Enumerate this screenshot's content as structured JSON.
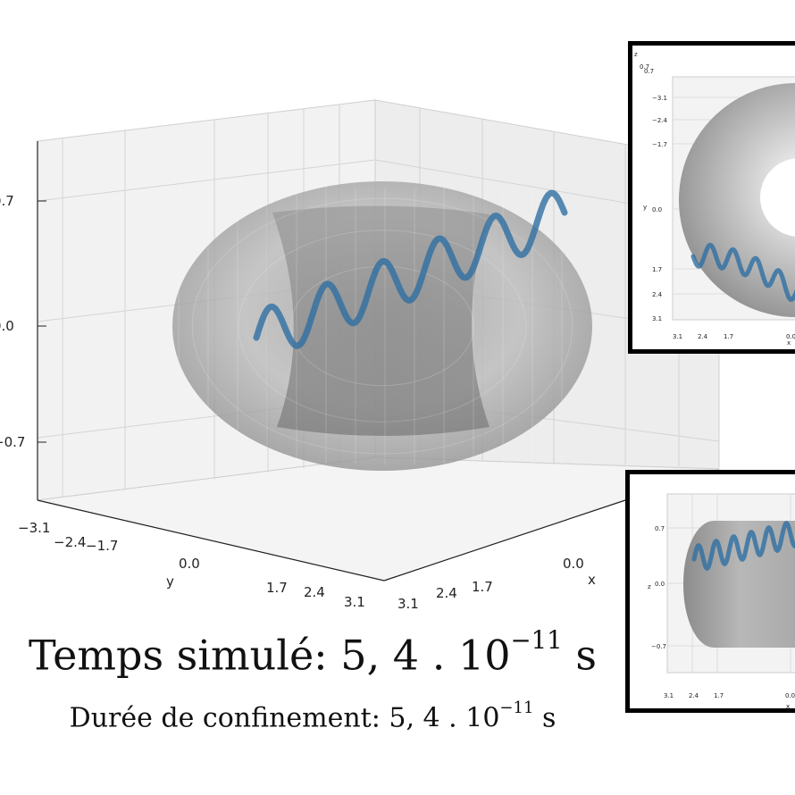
{
  "caption": {
    "simulated_label": "Temps simulé: ",
    "simulated_mantissa": "5, 4 . 10",
    "simulated_exponent": "−11",
    "simulated_unit": " s",
    "confinement_label": "Durée de confinement: ",
    "confinement_mantissa": "5, 4 . 10",
    "confinement_exponent": "−11",
    "confinement_unit": " s"
  },
  "chart_data": [
    {
      "type": "scatter",
      "view": "3d-perspective",
      "z_ticks": [
        "0.7",
        "0.0",
        "−0.7"
      ],
      "y_ticks": [
        "−3.1",
        "−2.4",
        "−1.7",
        "0.0",
        "1.7",
        "2.4",
        "3.1"
      ],
      "x_ticks": [
        "3.1",
        "2.4",
        "1.7",
        "0.0"
      ],
      "ylabel": "y",
      "xlabel": "x",
      "zlim": [
        -0.7,
        0.7
      ],
      "surface": "torus",
      "trajectory_color": "#2f6fa3",
      "grid": true
    },
    {
      "type": "scatter",
      "view": "top (x-y)",
      "zlabel": "z",
      "ylabel": "y",
      "xlabel": "x",
      "y_ticks": [
        "−3.1",
        "−2.4",
        "−1.7",
        "0.0",
        "1.7",
        "2.4",
        "3.1"
      ],
      "x_ticks": [
        "3.1",
        "2.4",
        "1.7",
        "0.0"
      ],
      "z_ticks": [
        "0.7",
        "0.7"
      ]
    },
    {
      "type": "scatter",
      "view": "side (x-z)",
      "zlabel": "z",
      "xlabel": "x",
      "z_ticks": [
        "0.7",
        "0.0",
        "−0.7"
      ],
      "x_ticks": [
        "3.1",
        "2.4",
        "1.7",
        "0.0"
      ]
    }
  ]
}
